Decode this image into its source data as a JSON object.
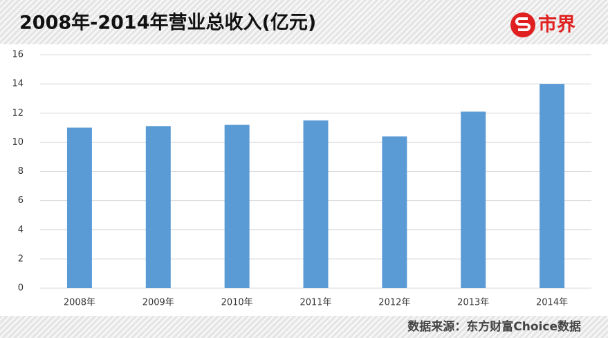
{
  "header": {
    "title": "2008年-2014年营业总收入(亿元)",
    "logo": "市界"
  },
  "chart_data": {
    "type": "bar",
    "categories": [
      "2008年",
      "2009年",
      "2010年",
      "2011年",
      "2012年",
      "2013年",
      "2014年"
    ],
    "values": [
      11.0,
      11.1,
      11.2,
      11.5,
      10.4,
      12.1,
      14.0
    ],
    "color": "#5b9bd5",
    "ylim": [
      0,
      16
    ],
    "yticks": [
      0,
      2,
      4,
      6,
      8,
      10,
      12,
      14,
      16
    ],
    "grid": true
  },
  "footer": {
    "source": "数据来源：东方财富Choice数据"
  }
}
